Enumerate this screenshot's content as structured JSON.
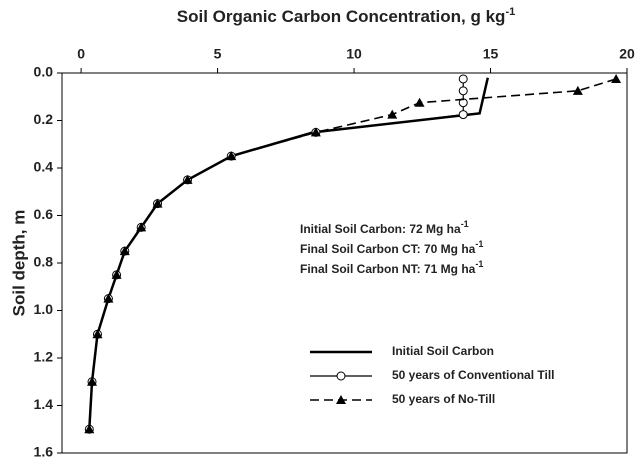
{
  "chart_data": {
    "type": "line",
    "title": {
      "text": "Soil Organic Carbon Concentration, g kg",
      "sup": "-1"
    },
    "y_label": "Soil depth, m",
    "xlim": [
      -0.7,
      20
    ],
    "xticks": [
      0,
      5,
      10,
      15,
      20
    ],
    "ylim": [
      0,
      1.6
    ],
    "yticks": [
      {
        "value": 0,
        "label": "0.0"
      },
      0.2,
      0.4,
      0.6,
      0.8,
      {
        "value": 1,
        "label": "1.0"
      },
      1.2,
      1.4,
      1.6
    ],
    "y_inverted": true,
    "x_axis_position": "top",
    "legend": "lower right",
    "annotations": [
      {
        "text": "Initial Soil Carbon: 72 Mg ha",
        "sup": "-1"
      },
      {
        "text": "Final Soil Carbon CT: 70 Mg ha",
        "sup": "-1"
      },
      {
        "text": "Final Soil Carbon NT: 71 Mg ha",
        "sup": "-1"
      }
    ],
    "series": [
      {
        "name": "Initial Soil Carbon",
        "color": "#000000",
        "style": "solid",
        "marker": "none",
        "width": 2.5,
        "x": [
          14.9,
          14.8,
          14.6,
          8.5,
          5.5,
          3.9,
          2.8,
          2.2,
          1.6,
          1.3,
          1.0,
          0.6,
          0.4,
          0.3
        ],
        "y": [
          0.02,
          0.07,
          0.17,
          0.25,
          0.35,
          0.45,
          0.55,
          0.65,
          0.75,
          0.85,
          0.95,
          1.1,
          1.3,
          1.5
        ]
      },
      {
        "name": "50 years of Conventional Till",
        "color": "#000000",
        "style": "solid",
        "marker": "circle",
        "width": 1.2,
        "x": [
          14.0,
          14.0,
          14.0,
          14.0,
          8.6,
          5.5,
          3.9,
          2.8,
          2.2,
          1.6,
          1.3,
          1.0,
          0.6,
          0.4,
          0.3
        ],
        "y": [
          0.025,
          0.075,
          0.125,
          0.175,
          0.25,
          0.35,
          0.45,
          0.55,
          0.65,
          0.75,
          0.85,
          0.95,
          1.1,
          1.3,
          1.5
        ]
      },
      {
        "name": "50 years of No-Till",
        "color": "#000000",
        "style": "dashed",
        "marker": "triangle",
        "width": 1.6,
        "x": [
          19.6,
          18.2,
          12.4,
          11.4,
          8.6,
          5.5,
          3.9,
          2.8,
          2.2,
          1.6,
          1.3,
          1.0,
          0.6,
          0.4,
          0.3
        ],
        "y": [
          0.025,
          0.075,
          0.125,
          0.175,
          0.25,
          0.35,
          0.45,
          0.55,
          0.65,
          0.75,
          0.85,
          0.95,
          1.1,
          1.3,
          1.5
        ]
      }
    ]
  }
}
